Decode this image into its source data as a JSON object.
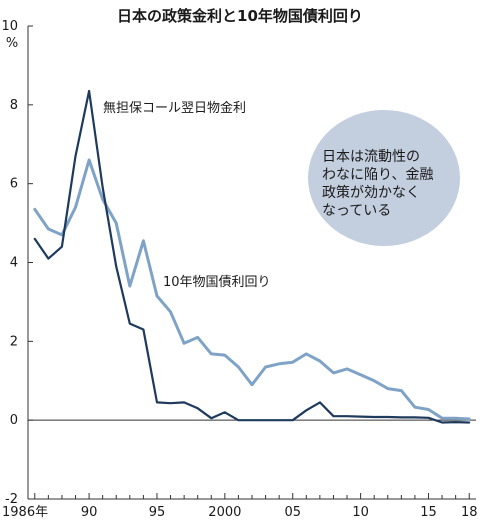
{
  "chart_data": {
    "type": "line",
    "title": "日本の政策金利と10年物国債利回り",
    "ylabel": "%",
    "ylim": [
      -2,
      10
    ],
    "yticks": [
      -2,
      0,
      2,
      4,
      6,
      8,
      10
    ],
    "xlim": [
      1985.5,
      2018.5
    ],
    "xticks": [
      {
        "year": 1986,
        "label": "1986年"
      },
      {
        "year": 1990,
        "label": "90"
      },
      {
        "year": 1995,
        "label": "95"
      },
      {
        "year": 2000,
        "label": "2000"
      },
      {
        "year": 2005,
        "label": "05"
      },
      {
        "year": 2010,
        "label": "10"
      },
      {
        "year": 2015,
        "label": "15"
      },
      {
        "year": 2018,
        "label": "18"
      }
    ],
    "series": [
      {
        "name": "無担保コール翌日物金利",
        "color": "#1e3a5c",
        "points": [
          [
            1986,
            4.6
          ],
          [
            1987,
            4.1
          ],
          [
            1988,
            4.4
          ],
          [
            1989,
            6.7
          ],
          [
            1990,
            8.35
          ],
          [
            1991,
            5.9
          ],
          [
            1992,
            3.9
          ],
          [
            1993,
            2.45
          ],
          [
            1994,
            2.3
          ],
          [
            1995,
            0.45
          ],
          [
            1996,
            0.43
          ],
          [
            1997,
            0.45
          ],
          [
            1998,
            0.3
          ],
          [
            1999,
            0.05
          ],
          [
            2000,
            0.2
          ],
          [
            2001,
            0.0
          ],
          [
            2002,
            0.0
          ],
          [
            2003,
            0.0
          ],
          [
            2004,
            0.0
          ],
          [
            2005,
            0.0
          ],
          [
            2006,
            0.25
          ],
          [
            2007,
            0.45
          ],
          [
            2008,
            0.1
          ],
          [
            2009,
            0.1
          ],
          [
            2010,
            0.09
          ],
          [
            2011,
            0.08
          ],
          [
            2012,
            0.08
          ],
          [
            2013,
            0.07
          ],
          [
            2014,
            0.07
          ],
          [
            2015,
            0.06
          ],
          [
            2016,
            -0.06
          ],
          [
            2017,
            -0.05
          ],
          [
            2018,
            -0.06
          ]
        ]
      },
      {
        "name": "10年物国債利回り",
        "color": "#7fa3c6",
        "points": [
          [
            1986,
            5.35
          ],
          [
            1987,
            4.85
          ],
          [
            1988,
            4.7
          ],
          [
            1989,
            5.4
          ],
          [
            1990,
            6.6
          ],
          [
            1991,
            5.6
          ],
          [
            1992,
            5.0
          ],
          [
            1993,
            3.4
          ],
          [
            1994,
            4.55
          ],
          [
            1995,
            3.15
          ],
          [
            1996,
            2.75
          ],
          [
            1997,
            1.95
          ],
          [
            1998,
            2.1
          ],
          [
            1999,
            1.68
          ],
          [
            2000,
            1.65
          ],
          [
            2001,
            1.35
          ],
          [
            2002,
            0.9
          ],
          [
            2003,
            1.35
          ],
          [
            2004,
            1.43
          ],
          [
            2005,
            1.47
          ],
          [
            2006,
            1.68
          ],
          [
            2007,
            1.5
          ],
          [
            2008,
            1.2
          ],
          [
            2009,
            1.3
          ],
          [
            2010,
            1.15
          ],
          [
            2011,
            1.0
          ],
          [
            2012,
            0.8
          ],
          [
            2013,
            0.75
          ],
          [
            2014,
            0.33
          ],
          [
            2015,
            0.27
          ],
          [
            2016,
            0.05
          ],
          [
            2017,
            0.05
          ],
          [
            2018,
            0.03
          ]
        ]
      }
    ],
    "series_labels": [
      "無担保コール翌日物金利",
      "10年物国債利回り"
    ],
    "annotation": {
      "lines": [
        "日本は流動性の",
        "わなに陥り、金融",
        "政策が効かなく",
        "なっている"
      ],
      "fill": "#c3cede"
    }
  }
}
